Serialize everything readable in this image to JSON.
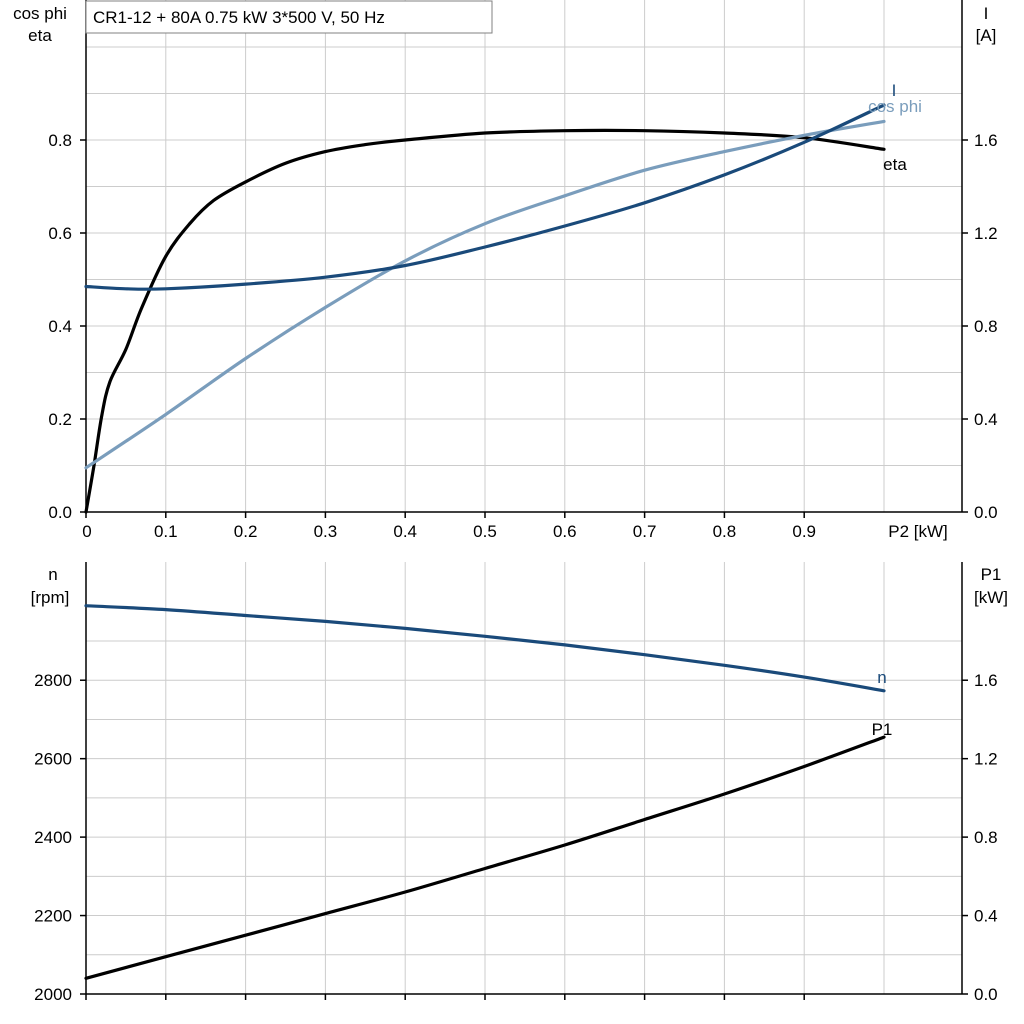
{
  "chart_data": [
    {
      "type": "line",
      "title": "CR1-12 + 80A   0.75 kW   3*500 V, 50 Hz",
      "xlabel": "P2 [kW]",
      "ylabel_left": [
        "cos phi",
        "eta"
      ],
      "ylabel_right": [
        "I",
        "[A]"
      ],
      "xlim": [
        0,
        1.0
      ],
      "ylim_left": [
        0,
        1.0
      ],
      "ylim_right": [
        0,
        2.0
      ],
      "x_ticks": [
        "0",
        "0.1",
        "0.2",
        "0.3",
        "0.4",
        "0.5",
        "0.6",
        "0.7",
        "0.8",
        "0.9"
      ],
      "y_left_ticks": [
        "0.0",
        "0.2",
        "0.4",
        "0.6",
        "0.8"
      ],
      "y_right_ticks": [
        "0.0",
        "0.4",
        "0.8",
        "1.2",
        "1.6"
      ],
      "grid": true,
      "series": [
        {
          "name": "eta",
          "axis": "left",
          "color": "#000000",
          "x": [
            0,
            0.01,
            0.02,
            0.03,
            0.05,
            0.07,
            0.1,
            0.13,
            0.16,
            0.2,
            0.25,
            0.3,
            0.35,
            0.4,
            0.5,
            0.6,
            0.7,
            0.8,
            0.9,
            1.0
          ],
          "y": [
            0,
            0.1,
            0.21,
            0.28,
            0.35,
            0.44,
            0.55,
            0.62,
            0.67,
            0.71,
            0.75,
            0.775,
            0.79,
            0.8,
            0.815,
            0.82,
            0.82,
            0.815,
            0.805,
            0.78
          ]
        },
        {
          "name": "cos phi",
          "axis": "left",
          "color": "#7a9dbc",
          "x": [
            0,
            0.1,
            0.2,
            0.3,
            0.4,
            0.5,
            0.6,
            0.7,
            0.8,
            0.9,
            1.0
          ],
          "y": [
            0.095,
            0.21,
            0.33,
            0.44,
            0.54,
            0.62,
            0.68,
            0.735,
            0.775,
            0.81,
            0.84
          ]
        },
        {
          "name": "I",
          "axis": "right",
          "color": "#1a4a7a",
          "x": [
            0,
            0.05,
            0.1,
            0.2,
            0.3,
            0.4,
            0.5,
            0.6,
            0.7,
            0.8,
            0.9,
            1.0
          ],
          "y": [
            0.97,
            0.96,
            0.96,
            0.98,
            1.01,
            1.06,
            1.14,
            1.23,
            1.33,
            1.45,
            1.59,
            1.75
          ]
        }
      ]
    },
    {
      "type": "line",
      "xlim": [
        0,
        1.0
      ],
      "ylim_left": [
        2000,
        2900
      ],
      "ylim_right": [
        0,
        1.8
      ],
      "ylabel_left": [
        "n",
        "[rpm]"
      ],
      "ylabel_right": [
        "P1",
        "[kW]"
      ],
      "y_left_ticks": [
        "2000",
        "2200",
        "2400",
        "2600",
        "2800"
      ],
      "y_right_ticks": [
        "0.0",
        "0.4",
        "0.8",
        "1.2",
        "1.6"
      ],
      "grid": true,
      "series": [
        {
          "name": "n",
          "axis": "left",
          "color": "#1a4a7a",
          "x": [
            0,
            0.1,
            0.2,
            0.3,
            0.4,
            0.5,
            0.6,
            0.7,
            0.8,
            0.9,
            1.0
          ],
          "y": [
            2990,
            2980,
            2965,
            2950,
            2932,
            2912,
            2890,
            2865,
            2838,
            2808,
            2773
          ]
        },
        {
          "name": "P1",
          "axis": "right",
          "color": "#000000",
          "x": [
            0,
            0.1,
            0.2,
            0.3,
            0.4,
            0.5,
            0.6,
            0.7,
            0.8,
            0.9,
            1.0
          ],
          "y": [
            0.08,
            0.19,
            0.3,
            0.41,
            0.52,
            0.64,
            0.76,
            0.89,
            1.02,
            1.16,
            1.31
          ]
        }
      ]
    }
  ]
}
